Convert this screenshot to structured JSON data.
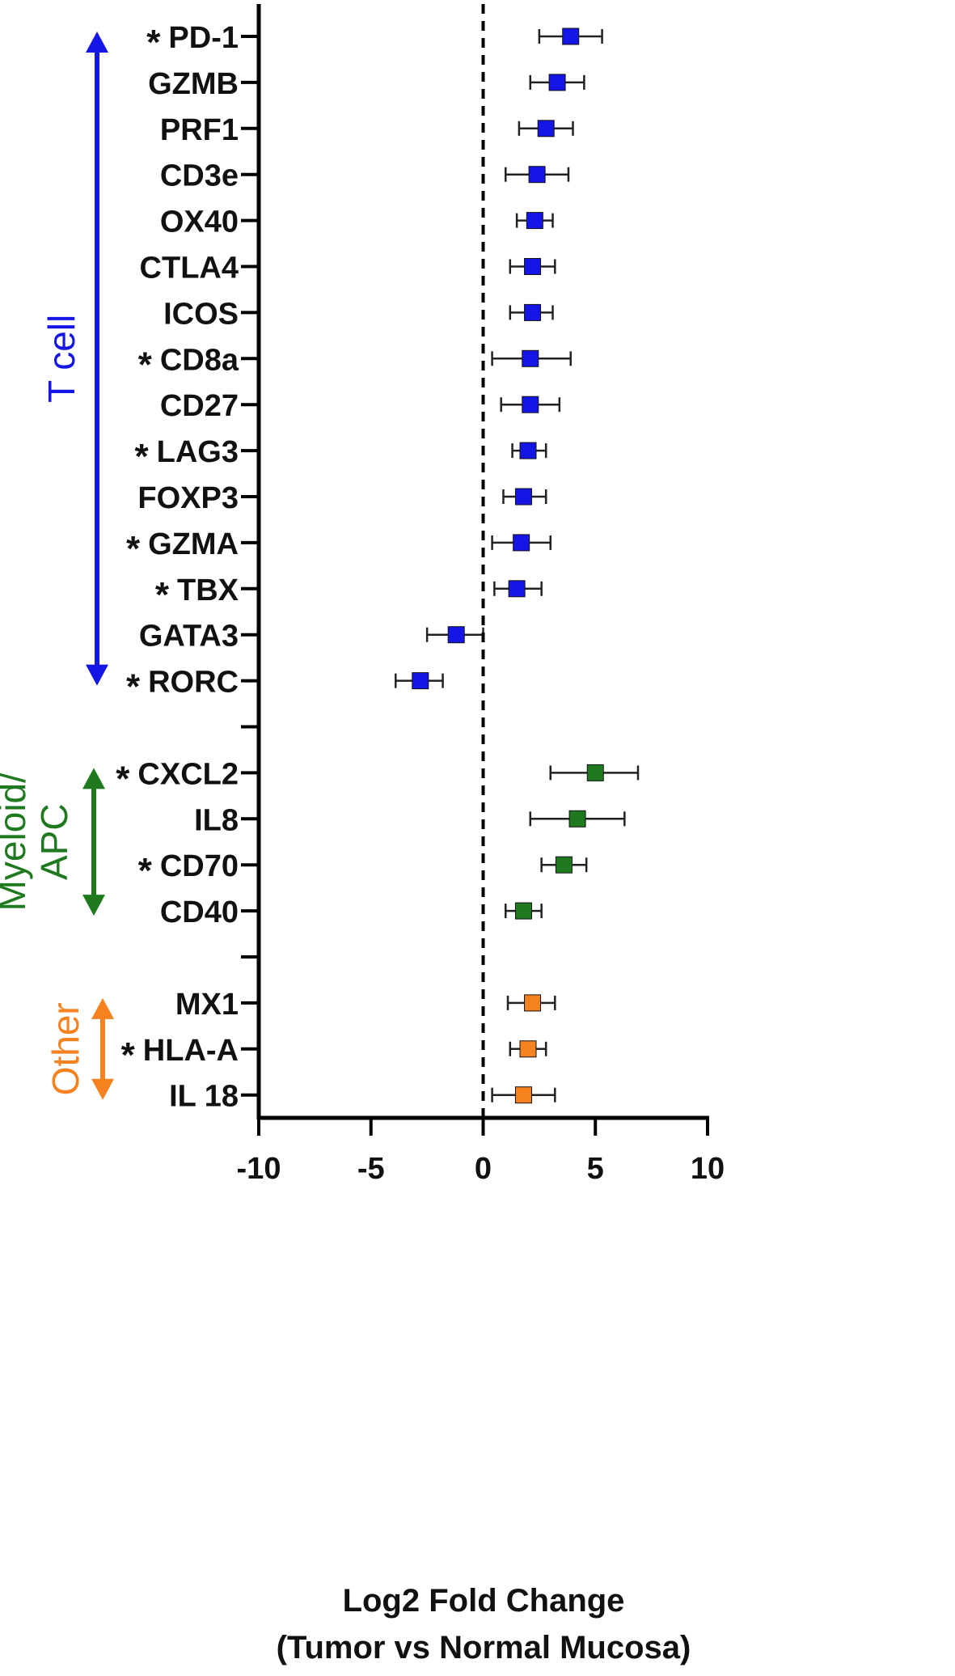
{
  "chart_data": {
    "type": "scatter",
    "xlabel": "Log2 Fold Change",
    "xlabel_line2": "(Tumor vs Normal Mucosa)",
    "xlim": [
      -10,
      10
    ],
    "xticks": [
      -10,
      -5,
      0,
      5,
      10
    ],
    "reference_line": 0,
    "grid": false,
    "significance_marker": "*",
    "groups": [
      {
        "label": "T cell",
        "color": "#1515e6",
        "rows": [
          {
            "gene": "PD-1",
            "significant": true,
            "value": 3.9,
            "ci": [
              2.5,
              5.3
            ]
          },
          {
            "gene": "GZMB",
            "significant": false,
            "value": 3.3,
            "ci": [
              2.1,
              4.5
            ]
          },
          {
            "gene": "PRF1",
            "significant": false,
            "value": 2.8,
            "ci": [
              1.6,
              4.0
            ]
          },
          {
            "gene": "CD3e",
            "significant": false,
            "value": 2.4,
            "ci": [
              1.0,
              3.8
            ]
          },
          {
            "gene": "OX40",
            "significant": false,
            "value": 2.3,
            "ci": [
              1.5,
              3.1
            ]
          },
          {
            "gene": "CTLA4",
            "significant": false,
            "value": 2.2,
            "ci": [
              1.2,
              3.2
            ]
          },
          {
            "gene": "ICOS",
            "significant": false,
            "value": 2.2,
            "ci": [
              1.2,
              3.1
            ]
          },
          {
            "gene": "CD8a",
            "significant": true,
            "value": 2.1,
            "ci": [
              0.4,
              3.9
            ]
          },
          {
            "gene": "CD27",
            "significant": false,
            "value": 2.1,
            "ci": [
              0.8,
              3.4
            ]
          },
          {
            "gene": "LAG3",
            "significant": true,
            "value": 2.0,
            "ci": [
              1.3,
              2.8
            ]
          },
          {
            "gene": "FOXP3",
            "significant": false,
            "value": 1.8,
            "ci": [
              0.9,
              2.8
            ]
          },
          {
            "gene": "GZMA",
            "significant": true,
            "value": 1.7,
            "ci": [
              0.4,
              3.0
            ]
          },
          {
            "gene": "TBX",
            "significant": true,
            "value": 1.5,
            "ci": [
              0.5,
              2.6
            ]
          },
          {
            "gene": "GATA3",
            "significant": false,
            "value": -1.2,
            "ci": [
              -2.5,
              0.0
            ]
          },
          {
            "gene": "RORC",
            "significant": true,
            "value": -2.8,
            "ci": [
              -3.9,
              -1.8
            ]
          }
        ]
      },
      {
        "label": "Myeloid/",
        "label_line2": "APC",
        "color": "#1f7a1f",
        "rows": [
          {
            "gene": "CXCL2",
            "significant": true,
            "value": 5.0,
            "ci": [
              3.0,
              6.9
            ]
          },
          {
            "gene": "IL8",
            "significant": false,
            "value": 4.2,
            "ci": [
              2.1,
              6.3
            ]
          },
          {
            "gene": "CD70",
            "significant": true,
            "value": 3.6,
            "ci": [
              2.6,
              4.6
            ]
          },
          {
            "gene": "CD40",
            "significant": false,
            "value": 1.8,
            "ci": [
              1.0,
              2.6
            ]
          }
        ]
      },
      {
        "label": "Other",
        "color": "#f5821f",
        "rows": [
          {
            "gene": "MX1",
            "significant": false,
            "value": 2.2,
            "ci": [
              1.1,
              3.2
            ]
          },
          {
            "gene": "HLA-A",
            "significant": true,
            "value": 2.0,
            "ci": [
              1.2,
              2.8
            ]
          },
          {
            "gene": "IL 18",
            "significant": false,
            "value": 1.8,
            "ci": [
              0.4,
              3.2
            ]
          }
        ]
      }
    ]
  }
}
